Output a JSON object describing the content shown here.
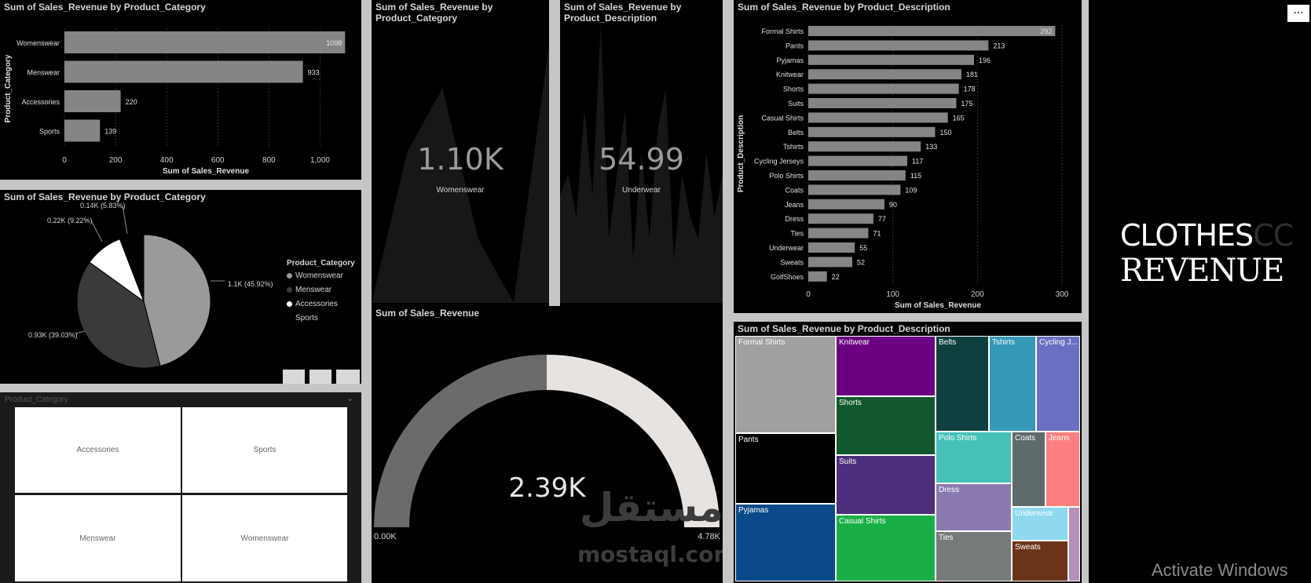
{
  "bar_category": {
    "title": "Sum of Sales_Revenue by Product_Category",
    "xlabel": "Sum of Sales_Revenue",
    "ylabel": "Product_Category"
  },
  "pie": {
    "title": "Sum of Sales_Revenue by Product_Category",
    "legend_title": "Product_Category",
    "legend": [
      {
        "label": "Womenswear",
        "color": "#9a9a9a"
      },
      {
        "label": "Menswear",
        "color": "#3a3a3a"
      },
      {
        "label": "Accessories",
        "color": "#ffffff"
      },
      {
        "label": "Sports",
        "color": "#000000"
      }
    ],
    "labels": [
      "1.1K (45.92%)",
      "0.93K (39.03%)",
      "0.22K (9.22%)",
      "0.14K (5.83%)"
    ]
  },
  "slicer": {
    "title": "Product_Category",
    "items": [
      "Accessories",
      "Sports",
      "Menswear",
      "Womenswear"
    ]
  },
  "card_category": {
    "title": "Sum of Sales_Revenue by Product_Category",
    "value": "1.10K",
    "sub": "Womenswear"
  },
  "card_description": {
    "title": "Sum of Sales_Revenue by Product_Description",
    "value": "54.99",
    "sub": "Underwear"
  },
  "gauge": {
    "title": "Sum of Sales_Revenue",
    "value_label": "2.39K",
    "min_label": "0.00K",
    "max_label": "4.78K",
    "value": 2.39,
    "min": 0,
    "max": 4.78
  },
  "bar_description": {
    "title": "Sum of Sales_Revenue by Product_Description",
    "xlabel": "Sum of Sales_Revenue",
    "ylabel": "Product_Description"
  },
  "treemap": {
    "title": "Sum of Sales_Revenue by Product_Description",
    "cells": [
      {
        "label": "Formal Shirts",
        "color": "#a0a0a0"
      },
      {
        "label": "Pants",
        "color": "#000000"
      },
      {
        "label": "Pyjamas",
        "color": "#0b4a8a"
      },
      {
        "label": "Knitwear",
        "color": "#6b0080"
      },
      {
        "label": "Shorts",
        "color": "#11592c"
      },
      {
        "label": "Suits",
        "color": "#4c2e7a"
      },
      {
        "label": "Casual Shirts",
        "color": "#1aaf46"
      },
      {
        "label": "Belts",
        "color": "#0f3f3f"
      },
      {
        "label": "Tshirts",
        "color": "#3598b6"
      },
      {
        "label": "Cycling J...",
        "color": "#6b6fc1"
      },
      {
        "label": "Polo Shirts",
        "color": "#45c1b8"
      },
      {
        "label": "Coats",
        "color": "#5f6b6b"
      },
      {
        "label": "Jeans",
        "color": "#fe7f7f"
      },
      {
        "label": "Dress",
        "color": "#8b7ab0"
      },
      {
        "label": "Ties",
        "color": "#777a7a"
      },
      {
        "label": "Underwear",
        "color": "#8fd8ee"
      },
      {
        "label": "Sweats",
        "color": "#6a351a"
      },
      {
        "label": "",
        "color": "#b490b8"
      }
    ]
  },
  "title_panel": {
    "line1": "CLOTHES",
    "line1_ghost": "CC",
    "line2": "REVENUE",
    "menu": "..."
  },
  "watermark": {
    "arabic": "مستقل",
    "site": "mostaql.com"
  },
  "activate": "Activate Windows",
  "chart_data": [
    {
      "type": "bar",
      "title": "Sum of Sales_Revenue by Product_Category",
      "categories": [
        "Womenswear",
        "Menswear",
        "Accessories",
        "Sports"
      ],
      "values": [
        1098,
        933,
        220,
        139
      ],
      "value_labels": [
        "1098",
        "933",
        "220",
        "139"
      ],
      "xlabel": "Sum of Sales_Revenue",
      "ylabel": "Product_Category",
      "xlim": [
        0,
        1100
      ],
      "xticks": [
        0,
        200,
        400,
        600,
        800,
        1000
      ],
      "xtick_labels": [
        "0",
        "200",
        "400",
        "600",
        "800",
        "1,000"
      ]
    },
    {
      "type": "pie",
      "title": "Sum of Sales_Revenue by Product_Category",
      "categories": [
        "Womenswear",
        "Menswear",
        "Accessories",
        "Sports"
      ],
      "values": [
        1.1,
        0.93,
        0.22,
        0.14
      ],
      "percent": [
        45.92,
        39.03,
        9.22,
        5.83
      ],
      "colors": [
        "#9a9a9a",
        "#3a3a3a",
        "#ffffff",
        "#000000"
      ],
      "legend": "right"
    },
    {
      "type": "bar",
      "title": "Sum of Sales_Revenue by Product_Description",
      "categories": [
        "Formal Shirts",
        "Pants",
        "Pyjamas",
        "Knitwear",
        "Shorts",
        "Suits",
        "Casual Shirts",
        "Belts",
        "Tshirts",
        "Cycling Jerseys",
        "Polo Shirts",
        "Coats",
        "Jeans",
        "Dress",
        "Ties",
        "Underwear",
        "Sweats",
        "GolfShoes"
      ],
      "values": [
        292,
        213,
        196,
        181,
        178,
        175,
        165,
        150,
        133,
        117,
        115,
        109,
        90,
        77,
        71,
        55,
        52,
        22
      ],
      "xlabel": "Sum of Sales_Revenue",
      "ylabel": "Product_Description",
      "xlim": [
        0,
        300
      ],
      "xticks": [
        0,
        100,
        200,
        300
      ]
    },
    {
      "type": "area",
      "title": "Sum of Sales_Revenue by Product_Category",
      "values": [
        0,
        0.7,
        1.0,
        0.3,
        0,
        1.2
      ],
      "note": ""
    },
    {
      "type": "area",
      "title": "Sum of Sales_Revenue by Product_Description",
      "values": [
        0.5,
        0.6,
        0.4,
        0.9,
        0.5,
        1.3,
        0.3,
        0.6,
        0.9,
        0.2,
        0.7,
        0.3,
        0.8,
        1.0,
        0.2,
        0.6,
        0.4,
        0.3,
        0.7,
        0.4,
        0.6
      ]
    }
  ]
}
